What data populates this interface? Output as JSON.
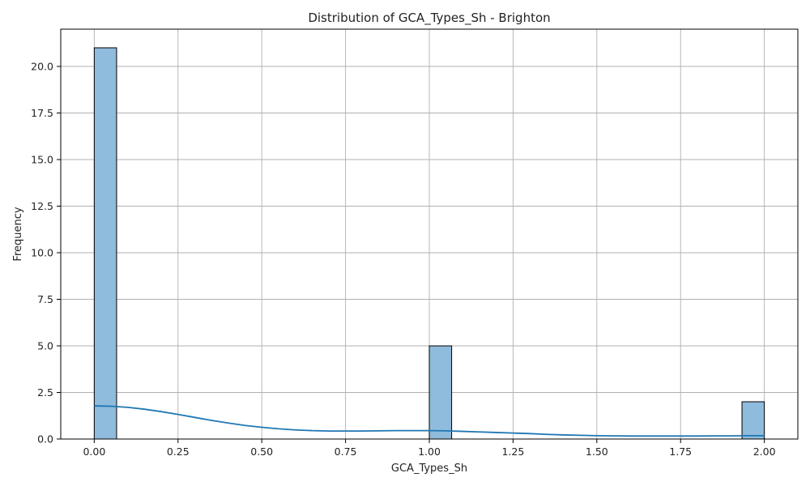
{
  "chart_data": {
    "type": "bar",
    "subtype": "histogram_with_kde",
    "title": "Distribution of GCA_Types_Sh - Brighton",
    "xlabel": "GCA_Types_Sh",
    "ylabel": "Frequency",
    "xlim": [
      -0.1,
      2.1
    ],
    "ylim": [
      0,
      22
    ],
    "grid": true,
    "x_ticks": [
      {
        "value": 0,
        "label": "0.00"
      },
      {
        "value": 0.25,
        "label": "0.25"
      },
      {
        "value": 0.5,
        "label": "0.50"
      },
      {
        "value": 0.75,
        "label": "0.75"
      },
      {
        "value": 1,
        "label": "1.00"
      },
      {
        "value": 1.25,
        "label": "1.25"
      },
      {
        "value": 1.5,
        "label": "1.50"
      },
      {
        "value": 1.75,
        "label": "1.75"
      },
      {
        "value": 2,
        "label": "2.00"
      }
    ],
    "y_ticks": [
      {
        "value": 0,
        "label": "0.0"
      },
      {
        "value": 2.5,
        "label": "2.5"
      },
      {
        "value": 5,
        "label": "5.0"
      },
      {
        "value": 7.5,
        "label": "7.5"
      },
      {
        "value": 10,
        "label": "10.0"
      },
      {
        "value": 12.5,
        "label": "12.5"
      },
      {
        "value": 15,
        "label": "15.0"
      },
      {
        "value": 17.5,
        "label": "17.5"
      },
      {
        "value": 20,
        "label": "20.0"
      }
    ],
    "bins": [
      {
        "x0": 0.0,
        "x1": 0.0667,
        "count": 21
      },
      {
        "x0": 1.0,
        "x1": 1.0667,
        "count": 5
      },
      {
        "x0": 1.9333,
        "x1": 2.0,
        "count": 2
      }
    ],
    "kde": {
      "x": [
        0.0,
        0.05,
        0.1,
        0.15,
        0.2,
        0.25,
        0.3,
        0.35,
        0.4,
        0.45,
        0.5,
        0.55,
        0.6,
        0.65,
        0.7,
        0.75,
        0.8,
        0.85,
        0.9,
        0.95,
        1.0,
        1.05,
        1.1,
        1.15,
        1.2,
        1.25,
        1.3,
        1.35,
        1.4,
        1.45,
        1.5,
        1.55,
        1.6,
        1.65,
        1.7,
        1.75,
        1.8,
        1.85,
        1.9,
        1.95,
        2.0
      ],
      "y": [
        1.78,
        1.76,
        1.7,
        1.6,
        1.47,
        1.32,
        1.16,
        1.0,
        0.86,
        0.73,
        0.63,
        0.55,
        0.49,
        0.45,
        0.43,
        0.43,
        0.43,
        0.44,
        0.45,
        0.45,
        0.45,
        0.44,
        0.41,
        0.38,
        0.35,
        0.32,
        0.29,
        0.25,
        0.22,
        0.2,
        0.18,
        0.17,
        0.16,
        0.16,
        0.16,
        0.16,
        0.16,
        0.17,
        0.17,
        0.18,
        0.18
      ]
    },
    "colors": {
      "bar_fill": "#8fbbdc",
      "bar_edge": "#000000",
      "kde_line": "#1f77b4",
      "grid": "#b0b0b0",
      "axis": "#000000"
    }
  }
}
